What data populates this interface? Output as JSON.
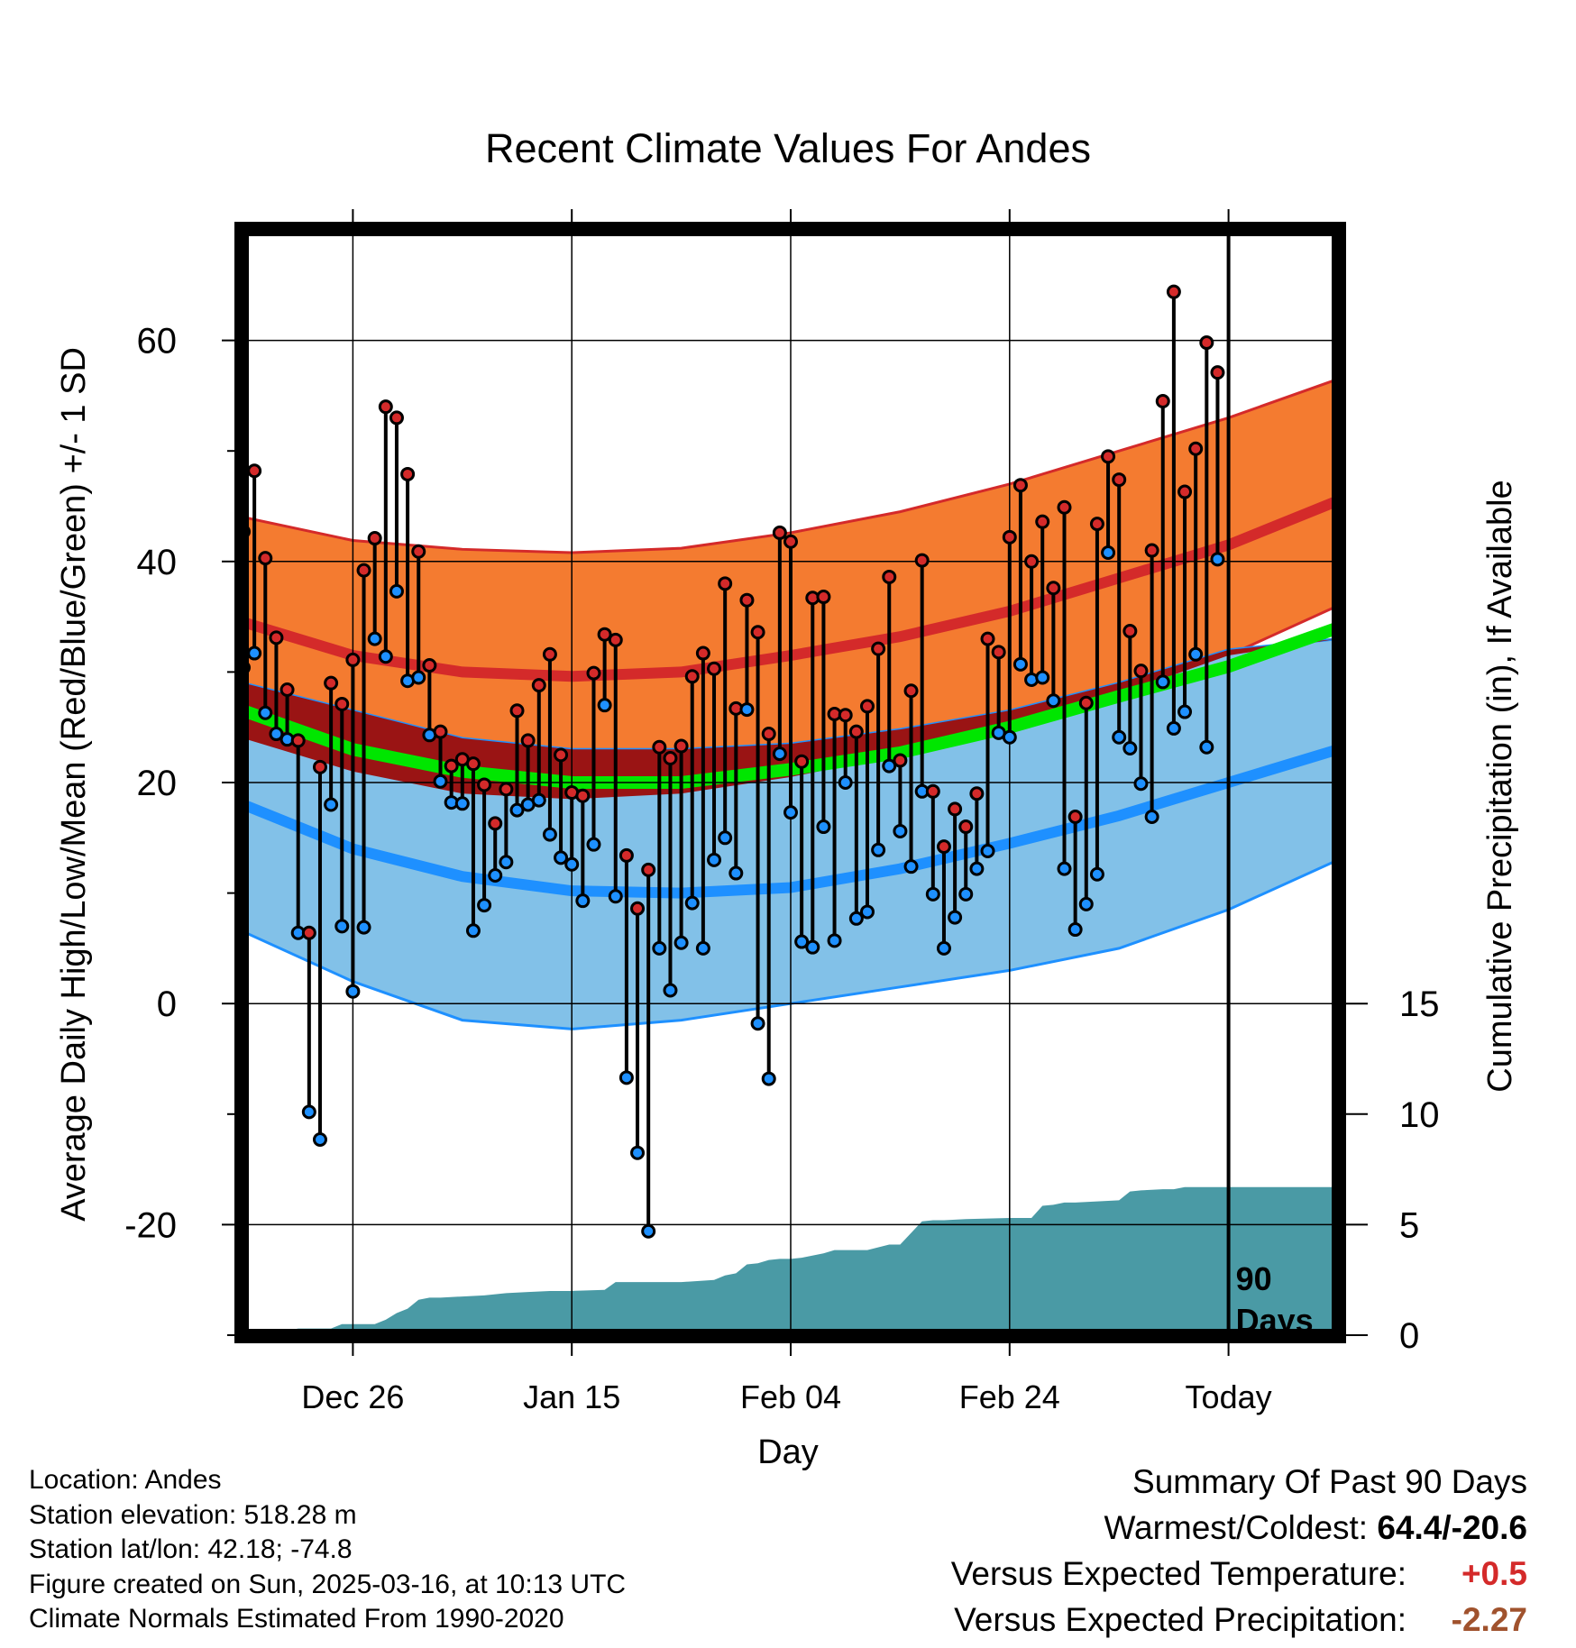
{
  "chart_data": {
    "type": "line",
    "title": "Recent Climate Values For Andes",
    "xlabel": "Day",
    "ylabel_left": "Average Daily High/Low/Mean (Red/Blue/Green) +/- 1 SD",
    "ylabel_right": "Cumulative Precipitation (in), If Available",
    "x_tick_labels": [
      "Dec 26",
      "Jan 15",
      "Feb 04",
      "Feb 24",
      "Today"
    ],
    "y_left_ticks": [
      -20,
      0,
      20,
      40,
      60
    ],
    "y_right_ticks": [
      0,
      5,
      10,
      15
    ],
    "ylim_left": [
      -30,
      70
    ],
    "ylim_right": [
      0,
      50
    ],
    "xlim_days": [
      0,
      100
    ],
    "today_day": 90,
    "today_marker_label": [
      "90",
      "Days"
    ],
    "colors": {
      "high_band": "#f47b30",
      "high_line": "#d42a2a",
      "low_band": "#82c1e8",
      "low_line": "#1e90ff",
      "mean_band": "#9a1414",
      "mean_line": "#00e600",
      "precip": "#4a9aa5",
      "high_point": "#d42a2a",
      "low_point": "#1e90ff"
    },
    "normal_high": {
      "day": [
        0,
        10,
        20,
        30,
        40,
        50,
        60,
        70,
        80,
        90,
        100
      ],
      "mean": [
        34.5,
        31.5,
        30.0,
        29.6,
        30.0,
        31.5,
        33.2,
        35.5,
        38.5,
        41.5,
        45.5
      ],
      "plus_sd": [
        44.0,
        41.9,
        41.1,
        40.8,
        41.2,
        42.6,
        44.5,
        47.0,
        50.0,
        53.0,
        56.5
      ],
      "minus_sd": [
        24.0,
        21.0,
        19.0,
        18.5,
        19.0,
        20.5,
        22.5,
        25.0,
        28.0,
        31.5,
        36.0
      ]
    },
    "normal_low": {
      "day": [
        0,
        10,
        20,
        30,
        40,
        50,
        60,
        70,
        80,
        90,
        100
      ],
      "mean": [
        18.0,
        14.0,
        11.5,
        10.2,
        10.0,
        10.5,
        12.2,
        14.5,
        17.0,
        20.0,
        23.0
      ],
      "plus_sd": [
        29.0,
        26.5,
        24.0,
        23.0,
        23.0,
        23.5,
        24.8,
        26.5,
        29.0,
        32.0,
        33.0
      ],
      "minus_sd": [
        6.5,
        2.0,
        -1.5,
        -2.3,
        -1.5,
        0.0,
        1.5,
        3.0,
        5.0,
        8.5,
        13.0
      ]
    },
    "normal_mean": {
      "day": [
        0,
        10,
        20,
        30,
        40,
        50,
        60,
        70,
        80,
        90,
        100
      ],
      "mean": [
        26.5,
        23.0,
        21.0,
        20.0,
        20.0,
        21.2,
        22.7,
        25.0,
        27.8,
        30.5,
        34.0
      ]
    },
    "daily_high": [
      42.7,
      48.2,
      40.3,
      33.1,
      28.4,
      23.8,
      6.4,
      21.4,
      29.0,
      27.1,
      31.1,
      39.2,
      42.1,
      54.0,
      53.0,
      47.9,
      40.9,
      30.6,
      24.6,
      21.5,
      22.1,
      21.7,
      19.8,
      16.3,
      19.4,
      26.5,
      23.8,
      28.8,
      31.6,
      22.5,
      19.1,
      18.8,
      29.9,
      33.4,
      32.9,
      13.4,
      8.6,
      12.1,
      23.2,
      22.2,
      23.3,
      29.6,
      31.7,
      30.3,
      38.0,
      26.7,
      36.5,
      33.6,
      24.4,
      42.6,
      41.8,
      21.9,
      36.7,
      36.8,
      26.2,
      26.1,
      24.6,
      26.9,
      32.1,
      38.6,
      22.0,
      28.3,
      40.1,
      19.2,
      14.2,
      17.6,
      16.0,
      19.0,
      33.0,
      31.8,
      42.2,
      46.9,
      40.0,
      43.6,
      37.6,
      44.9,
      16.9,
      27.2,
      43.4,
      49.5,
      47.4,
      33.7,
      30.1,
      41.0,
      54.5,
      64.4,
      46.3,
      50.2,
      59.8,
      57.1
    ],
    "daily_low": [
      30.4,
      31.7,
      26.3,
      24.4,
      23.9,
      6.4,
      -9.8,
      -12.3,
      18.0,
      7.0,
      1.1,
      6.9,
      33.0,
      31.4,
      37.3,
      29.2,
      29.5,
      24.3,
      20.1,
      18.2,
      18.1,
      6.6,
      8.9,
      11.6,
      12.8,
      17.5,
      18.0,
      18.4,
      15.3,
      13.2,
      12.6,
      9.3,
      14.4,
      27.0,
      9.7,
      -6.7,
      -13.5,
      -20.6,
      5.0,
      1.2,
      5.5,
      9.1,
      5.0,
      13.0,
      15.0,
      11.8,
      26.6,
      -1.8,
      -6.8,
      22.6,
      17.3,
      5.6,
      5.1,
      16.0,
      5.7,
      20.0,
      7.7,
      8.3,
      13.9,
      21.5,
      15.6,
      12.4,
      19.2,
      9.9,
      5.0,
      7.8,
      9.9,
      12.2,
      13.8,
      24.5,
      24.1,
      30.7,
      29.3,
      29.5,
      27.4,
      12.2,
      6.7,
      9.0,
      11.7,
      40.8,
      24.1,
      23.1,
      19.9,
      16.9,
      29.1,
      24.9,
      26.4,
      31.6,
      23.2,
      40.2
    ],
    "cumulative_precip": {
      "day": [
        0,
        2,
        4,
        5,
        6,
        7,
        8,
        9,
        10,
        11,
        12,
        13,
        14,
        15,
        16,
        17,
        18,
        20,
        22,
        24,
        26,
        28,
        30,
        33,
        34,
        35,
        37,
        40,
        43,
        44,
        45,
        46,
        47,
        48,
        49,
        50,
        51,
        53,
        54,
        55,
        57,
        59,
        60,
        62,
        63,
        64,
        66,
        70,
        72,
        73,
        74,
        75,
        76,
        80,
        81,
        82,
        84,
        85,
        86,
        87,
        90,
        100
      ],
      "value": [
        0.0,
        0.1,
        0.2,
        0.3,
        0.3,
        0.3,
        0.3,
        0.5,
        0.5,
        0.5,
        0.5,
        0.7,
        1.0,
        1.2,
        1.6,
        1.7,
        1.7,
        1.75,
        1.8,
        1.9,
        1.95,
        2.0,
        2.0,
        2.05,
        2.4,
        2.4,
        2.4,
        2.4,
        2.5,
        2.7,
        2.8,
        3.2,
        3.25,
        3.4,
        3.45,
        3.45,
        3.5,
        3.7,
        3.85,
        3.85,
        3.85,
        4.1,
        4.1,
        5.15,
        5.2,
        5.2,
        5.25,
        5.3,
        5.3,
        5.85,
        5.9,
        6.0,
        6.0,
        6.1,
        6.5,
        6.55,
        6.6,
        6.6,
        6.7,
        6.7,
        6.7,
        6.7
      ]
    }
  },
  "footer": {
    "location": "Location: Andes",
    "elevation": "Station elevation: 518.28 m",
    "latlon": "Station lat/lon: 42.18; -74.8",
    "created": "Figure created on Sun, 2025-03-16, at 10:13 UTC",
    "normals": "Climate Normals Estimated From 1990-2020"
  },
  "summary": {
    "heading": "Summary Of Past 90 Days",
    "warm_cold_label": "Warmest/Coldest:",
    "warm_cold_value": "64.4/-20.6",
    "temp_label": "Versus Expected Temperature:",
    "temp_value": "+0.5",
    "temp_color": "#d42a2a",
    "precip_label": "Versus Expected Precipitation:",
    "precip_value": "-2.27",
    "precip_color": "#a0522d"
  }
}
